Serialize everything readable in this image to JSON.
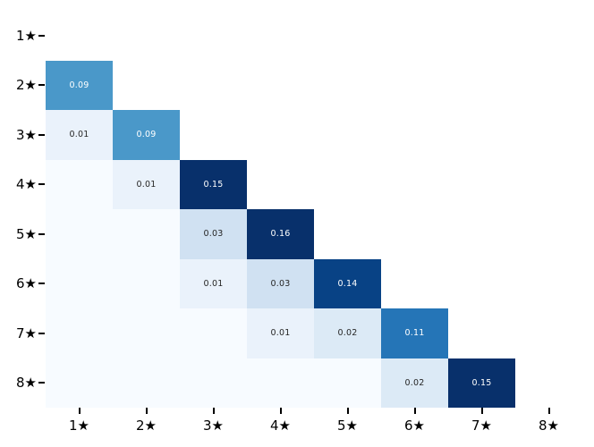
{
  "figure": {
    "background": "#ffffff",
    "title": ""
  },
  "chart_data": {
    "type": "heatmap",
    "title": "",
    "xlabel": "",
    "ylabel": "",
    "x_categories": [
      "1★",
      "2★",
      "3★",
      "4★",
      "5★",
      "6★",
      "7★",
      "8★"
    ],
    "y_categories": [
      "1★",
      "2★",
      "3★",
      "4★",
      "5★",
      "6★",
      "7★",
      "8★"
    ],
    "mask": "upper-triangle-including-diagonal",
    "legend": "none",
    "grid": "off",
    "colormap": {
      "name": "Blues",
      "vmin": 0,
      "vmax": 0.15,
      "anchors": [
        "#f7fbff",
        "#deebf7",
        "#c6dbef",
        "#9ecae1",
        "#6baed6",
        "#4292c6",
        "#2171b5",
        "#08519c",
        "#08306b"
      ],
      "annotation_color_dark_cells": "#ffffff",
      "annotation_color_light_cells": "#262626",
      "tick_color": "#000000"
    },
    "cells": [
      {
        "r": 2,
        "c": 1,
        "v": 0.09,
        "label": "0.09"
      },
      {
        "r": 3,
        "c": 1,
        "v": 0.01,
        "label": "0.01"
      },
      {
        "r": 3,
        "c": 2,
        "v": 0.09,
        "label": "0.09"
      },
      {
        "r": 4,
        "c": 1,
        "v": 0.0,
        "label": null
      },
      {
        "r": 4,
        "c": 2,
        "v": 0.01,
        "label": "0.01"
      },
      {
        "r": 4,
        "c": 3,
        "v": 0.15,
        "label": "0.15"
      },
      {
        "r": 5,
        "c": 1,
        "v": 0.0,
        "label": null
      },
      {
        "r": 5,
        "c": 2,
        "v": 0.0,
        "label": null
      },
      {
        "r": 5,
        "c": 3,
        "v": 0.03,
        "label": "0.03"
      },
      {
        "r": 5,
        "c": 4,
        "v": 0.16,
        "label": "0.16"
      },
      {
        "r": 6,
        "c": 1,
        "v": 0.0,
        "label": null
      },
      {
        "r": 6,
        "c": 2,
        "v": 0.0,
        "label": null
      },
      {
        "r": 6,
        "c": 3,
        "v": 0.01,
        "label": "0.01"
      },
      {
        "r": 6,
        "c": 4,
        "v": 0.03,
        "label": "0.03"
      },
      {
        "r": 6,
        "c": 5,
        "v": 0.14,
        "label": "0.14"
      },
      {
        "r": 7,
        "c": 1,
        "v": 0.0,
        "label": null
      },
      {
        "r": 7,
        "c": 2,
        "v": 0.0,
        "label": null
      },
      {
        "r": 7,
        "c": 3,
        "v": 0.0,
        "label": null
      },
      {
        "r": 7,
        "c": 4,
        "v": 0.01,
        "label": "0.01"
      },
      {
        "r": 7,
        "c": 5,
        "v": 0.02,
        "label": "0.02"
      },
      {
        "r": 7,
        "c": 6,
        "v": 0.11,
        "label": "0.11"
      },
      {
        "r": 8,
        "c": 1,
        "v": 0.0,
        "label": null
      },
      {
        "r": 8,
        "c": 2,
        "v": 0.0,
        "label": null
      },
      {
        "r": 8,
        "c": 3,
        "v": 0.0,
        "label": null
      },
      {
        "r": 8,
        "c": 4,
        "v": 0.0,
        "label": null
      },
      {
        "r": 8,
        "c": 5,
        "v": 0.0,
        "label": null
      },
      {
        "r": 8,
        "c": 6,
        "v": 0.02,
        "label": "0.02"
      },
      {
        "r": 8,
        "c": 7,
        "v": 0.15,
        "label": "0.15"
      }
    ]
  }
}
